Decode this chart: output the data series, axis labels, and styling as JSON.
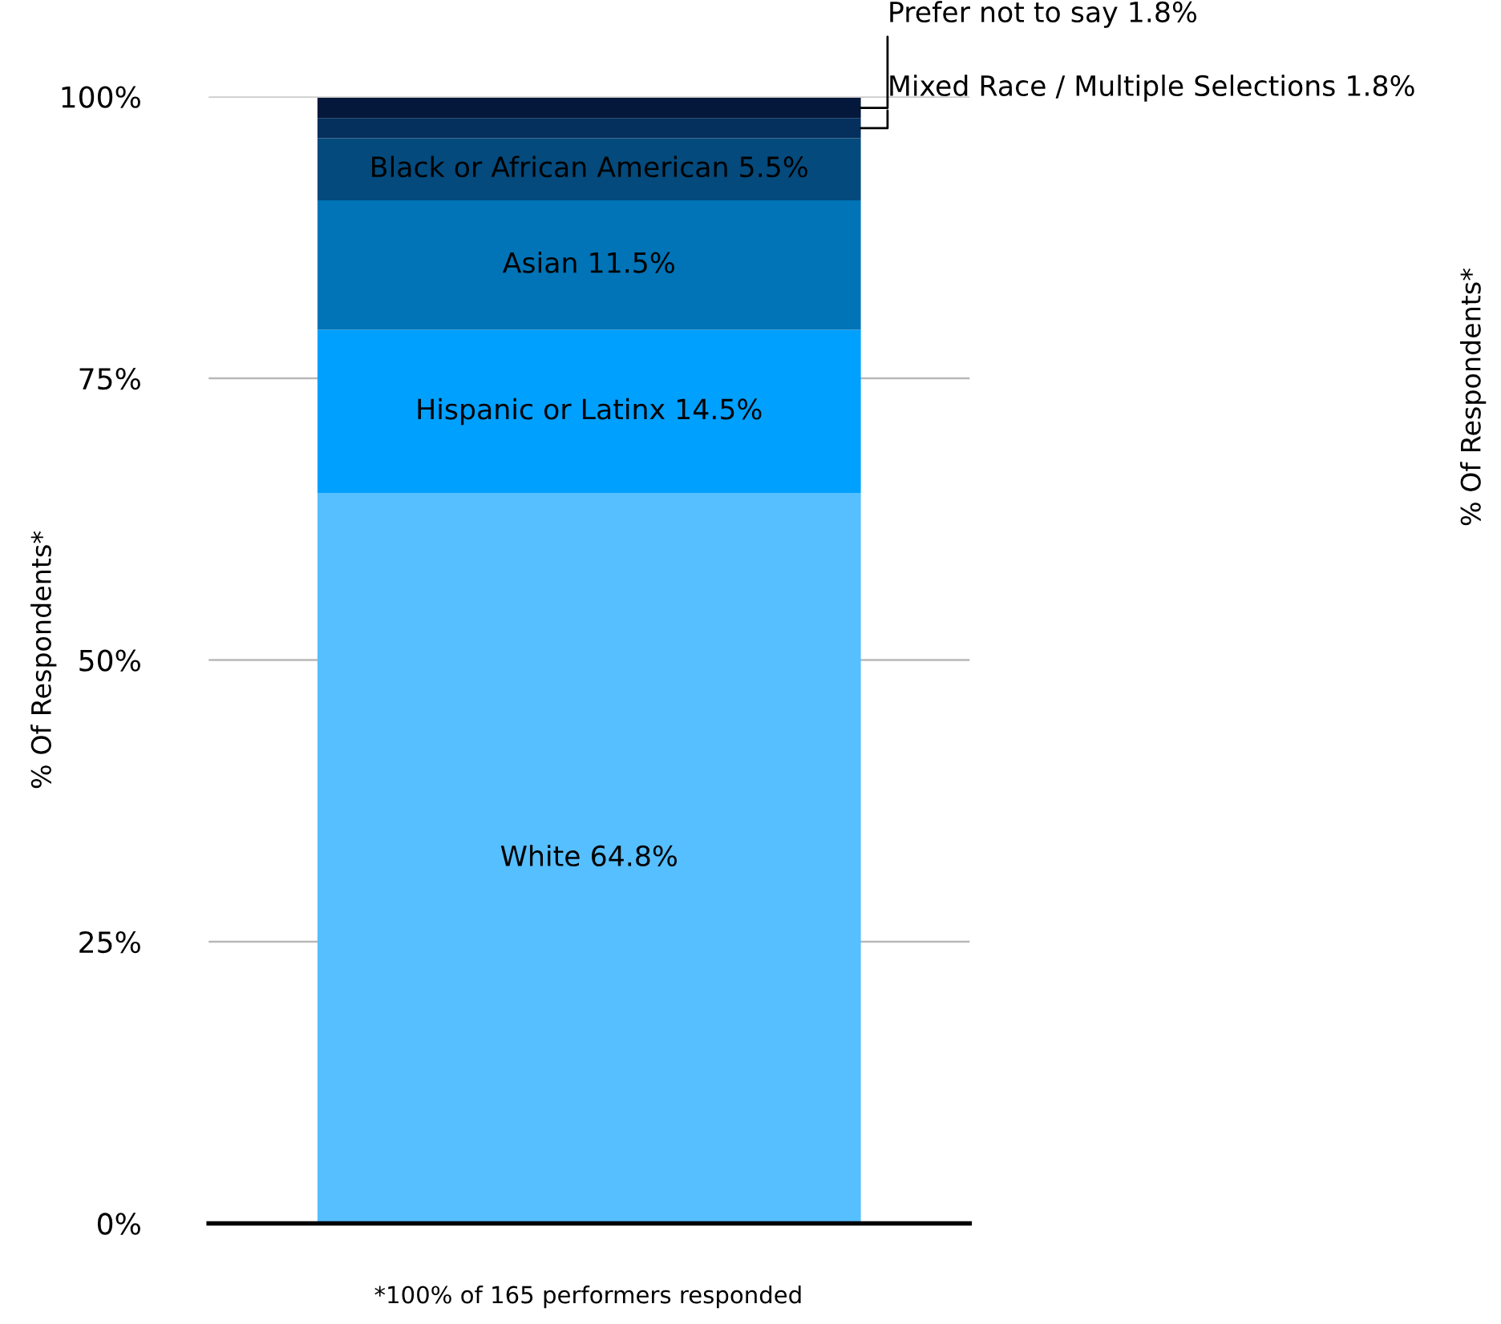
{
  "chart_data": {
    "type": "bar",
    "stacked": true,
    "categories": [
      null
    ],
    "series": [
      {
        "color": "#56bfff",
        "values": [
          64.8
        ],
        "value_labels": [
          "White 64.8%"
        ]
      },
      {
        "color": "#00a0ff",
        "values": [
          14.5
        ],
        "value_labels": [
          "Hispanic or Latinx 14.5%"
        ]
      },
      {
        "color": "#0074b7",
        "values": [
          11.5
        ],
        "value_labels": [
          "Asian 11.5%"
        ]
      },
      {
        "color": "#044a7c",
        "values": [
          5.5
        ],
        "value_labels": [
          "Black or African American 5.5%"
        ]
      },
      {
        "color": "#05305e",
        "values": [
          1.8
        ],
        "value_labels": [
          "Mixed Race / Multiple Selections 1.8%"
        ]
      },
      {
        "color": "#03183a",
        "values": [
          1.8
        ],
        "value_labels": [
          "Prefer not to say 1.8%"
        ]
      }
    ],
    "ylim": [
      0,
      100
    ],
    "yticks": [
      {
        "value": 0,
        "label": "0%"
      },
      {
        "value": 25,
        "label": "25%"
      },
      {
        "value": 50,
        "label": "50%"
      },
      {
        "value": 75,
        "label": "75%"
      },
      {
        "value": 100,
        "label": "100%"
      }
    ],
    "ylabel": "% Of Respondents*",
    "grid": "y",
    "legend": false,
    "annotations": [
      "*100% of 165 performers responded",
      "% Of Respondents*"
    ]
  }
}
